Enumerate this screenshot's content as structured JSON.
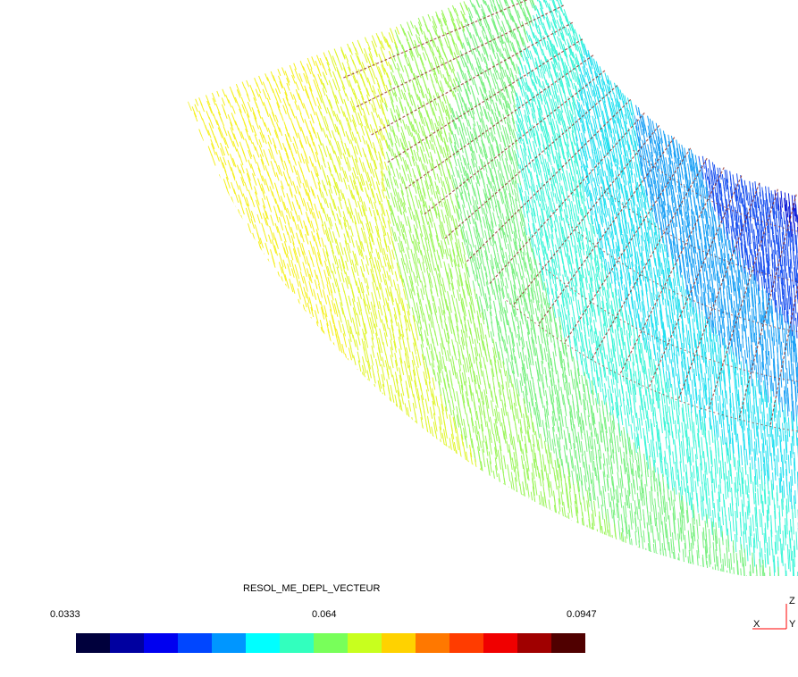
{
  "plot": {
    "field_name": "RESOL_ME_DEPL_VECTEUR",
    "colorbar": {
      "min_label": "0.0333",
      "mid_label": "0.064",
      "max_label": "0.0947",
      "min": 0.0333,
      "max": 0.0947,
      "colors": [
        "#00003c",
        "#0000a0",
        "#0000f0",
        "#0046ff",
        "#0096ff",
        "#00ffff",
        "#32ffbe",
        "#78ff5a",
        "#c8ff1e",
        "#ffd200",
        "#ff7800",
        "#ff3c00",
        "#f00000",
        "#a00000",
        "#500000"
      ]
    }
  },
  "axes": {
    "x_label": "X",
    "y_label": "Y",
    "z_label": "Z",
    "color": "#ff0000"
  }
}
